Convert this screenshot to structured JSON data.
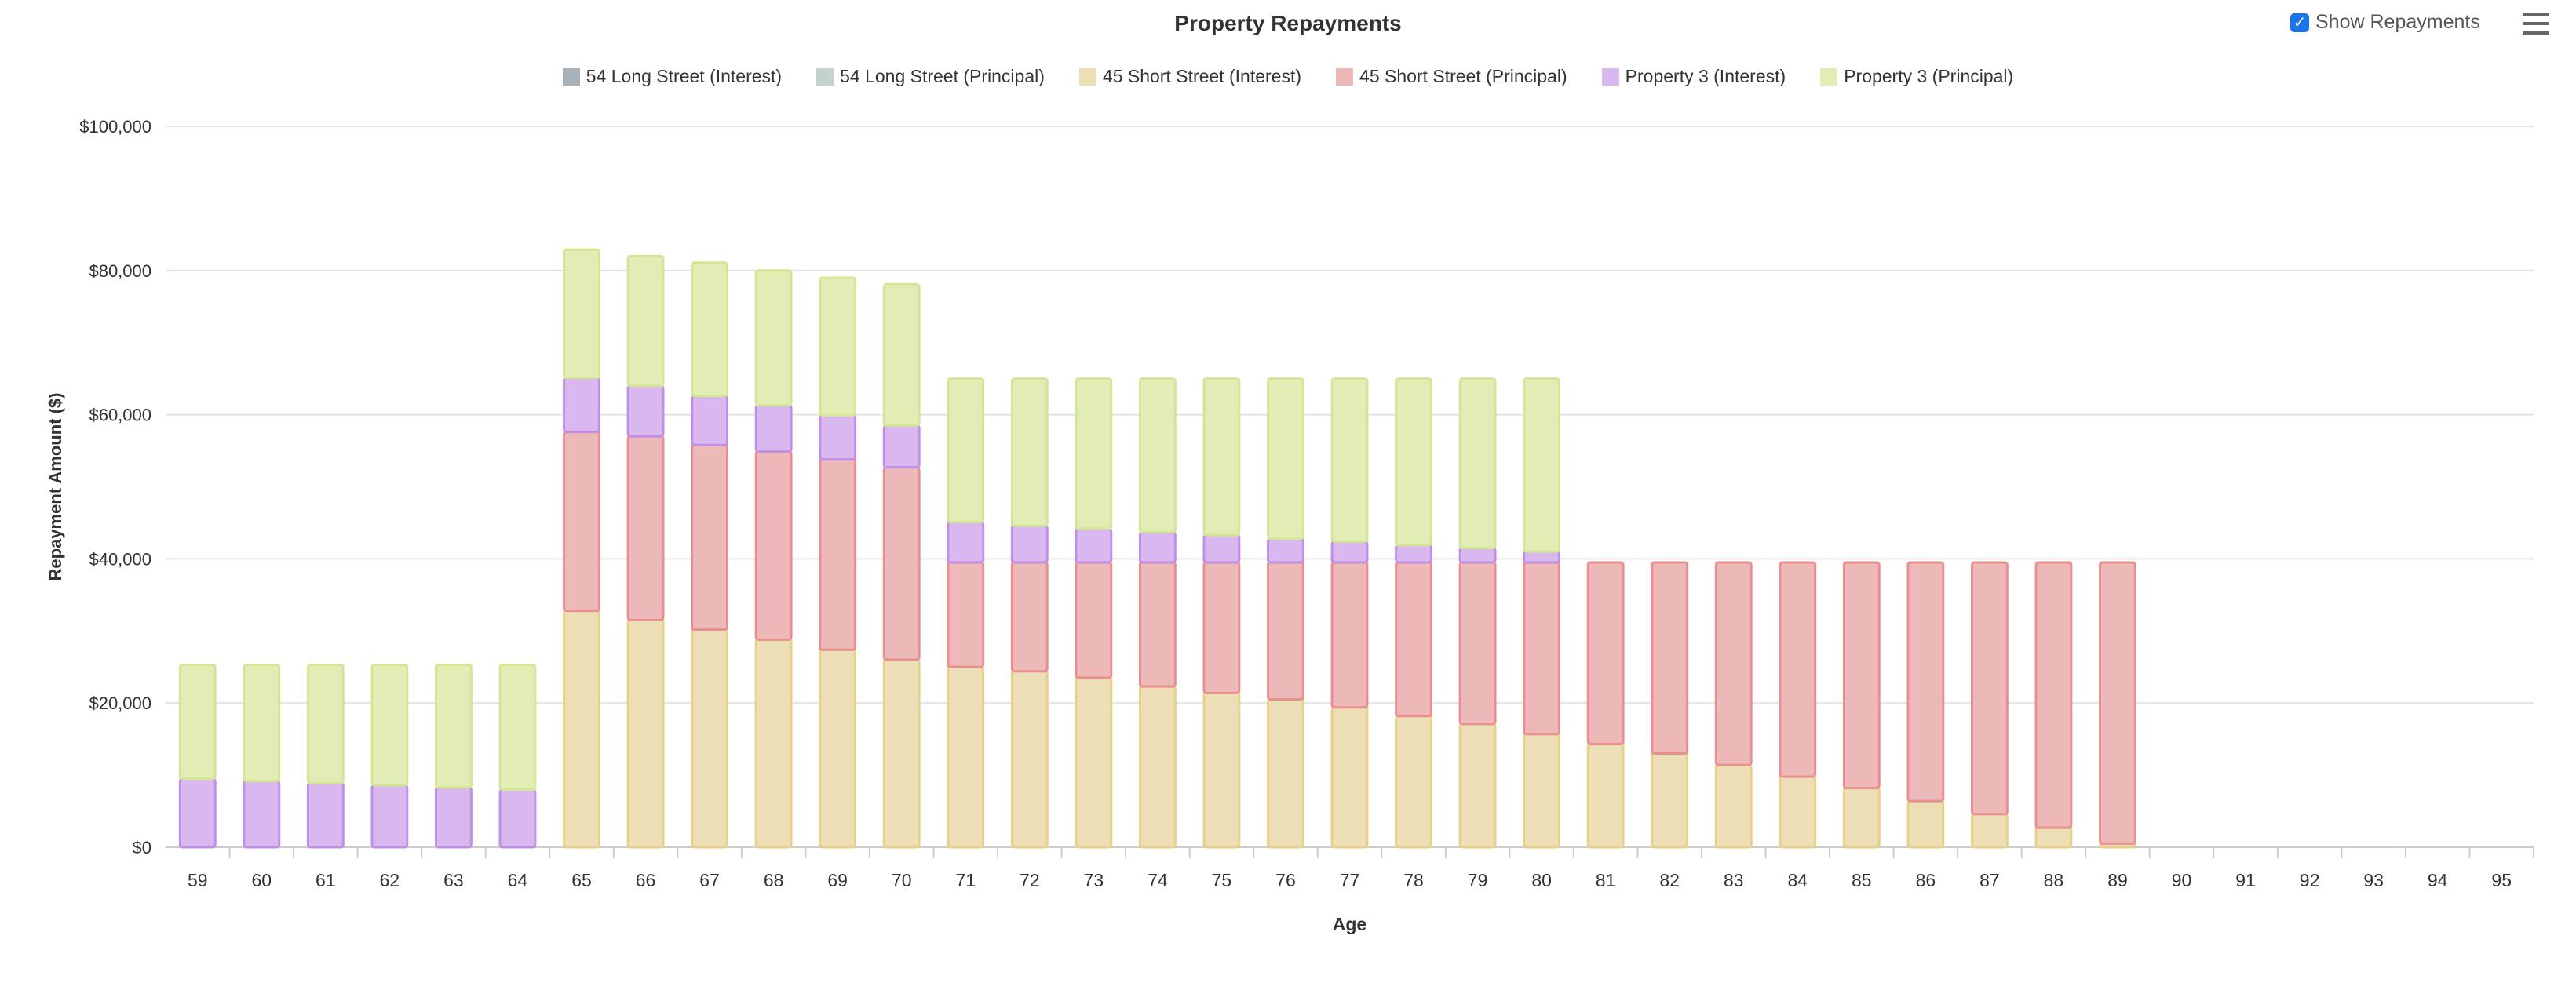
{
  "header": {
    "title": "Property Repayments",
    "toggle_label": "Show Repayments",
    "toggle_checked": true,
    "menu_icon": "hamburger-menu-icon"
  },
  "chart_data": {
    "type": "bar",
    "stacked": true,
    "title": "Property Repayments",
    "xlabel": "Age",
    "ylabel": "Repayment Amount ($)",
    "ylim": [
      0,
      100000
    ],
    "yticks": [
      "$0",
      "$20,000",
      "$40,000",
      "$60,000",
      "$80,000",
      "$100,000"
    ],
    "ytick_values": [
      0,
      20000,
      40000,
      60000,
      80000,
      100000
    ],
    "grid": true,
    "legend_position": "top",
    "categories": [
      "59",
      "60",
      "61",
      "62",
      "63",
      "64",
      "65",
      "66",
      "67",
      "68",
      "69",
      "70",
      "71",
      "72",
      "73",
      "74",
      "75",
      "76",
      "77",
      "78",
      "79",
      "80",
      "81",
      "82",
      "83",
      "84",
      "85",
      "86",
      "87",
      "88",
      "89",
      "90",
      "91",
      "92",
      "93",
      "94",
      "95"
    ],
    "series": [
      {
        "name": "54 Long Street (Interest)",
        "color": "#a9b2ba",
        "border": "#98a2ab",
        "values": [
          0,
          0,
          0,
          0,
          0,
          0,
          0,
          0,
          0,
          0,
          0,
          0,
          0,
          0,
          0,
          0,
          0,
          0,
          0,
          0,
          0,
          0,
          0,
          0,
          0,
          0,
          0,
          0,
          0,
          0,
          0,
          0,
          0,
          0,
          0,
          0,
          0
        ]
      },
      {
        "name": "54 Long Street (Principal)",
        "color": "#c2d3cc",
        "border": "#b0c4bc",
        "values": [
          0,
          0,
          0,
          0,
          0,
          0,
          0,
          0,
          0,
          0,
          0,
          0,
          0,
          0,
          0,
          0,
          0,
          0,
          0,
          0,
          0,
          0,
          0,
          0,
          0,
          0,
          0,
          0,
          0,
          0,
          0,
          0,
          0,
          0,
          0,
          0,
          0
        ]
      },
      {
        "name": "45 Short Street (Interest)",
        "color": "#ecdfb5",
        "border": "#e8cf8c",
        "values": [
          0,
          0,
          0,
          0,
          0,
          0,
          32800,
          31500,
          30200,
          28800,
          27400,
          26000,
          25000,
          24400,
          23500,
          22300,
          21400,
          20500,
          19400,
          18200,
          17100,
          15700,
          14300,
          13000,
          11400,
          9800,
          8200,
          6400,
          4600,
          2700,
          500,
          0,
          0,
          0,
          0,
          0,
          0
        ]
      },
      {
        "name": "45 Short Street (Principal)",
        "color": "#edb8b8",
        "border": "#e88f8f",
        "values": [
          0,
          0,
          0,
          0,
          0,
          0,
          24800,
          25500,
          25600,
          26100,
          26400,
          26700,
          14500,
          15100,
          16000,
          17200,
          18100,
          19000,
          20100,
          21300,
          22400,
          23800,
          25200,
          26500,
          28100,
          29700,
          31300,
          33100,
          34900,
          36800,
          39000,
          0,
          0,
          0,
          0,
          0,
          0
        ]
      },
      {
        "name": "Property 3 (Interest)",
        "color": "#d8b8ee",
        "border": "#c28fe6",
        "values": [
          9500,
          9200,
          8900,
          8600,
          8300,
          8000,
          7500,
          7000,
          6800,
          6400,
          6100,
          5800,
          5600,
          5100,
          4700,
          4200,
          3800,
          3300,
          2900,
          2400,
          2000,
          1500,
          0,
          0,
          0,
          0,
          0,
          0,
          0,
          0,
          0,
          0,
          0,
          0,
          0,
          0,
          0
        ]
      },
      {
        "name": "Property 3 (Principal)",
        "color": "#e2ecb5",
        "border": "#d5e596",
        "values": [
          15800,
          16100,
          16400,
          16700,
          17000,
          17300,
          17800,
          18000,
          18500,
          18700,
          19100,
          19600,
          19900,
          20400,
          20800,
          21300,
          21700,
          22200,
          22600,
          23100,
          23500,
          24000,
          0,
          0,
          0,
          0,
          0,
          0,
          0,
          0,
          0,
          0,
          0,
          0,
          0,
          0,
          0
        ]
      }
    ]
  }
}
